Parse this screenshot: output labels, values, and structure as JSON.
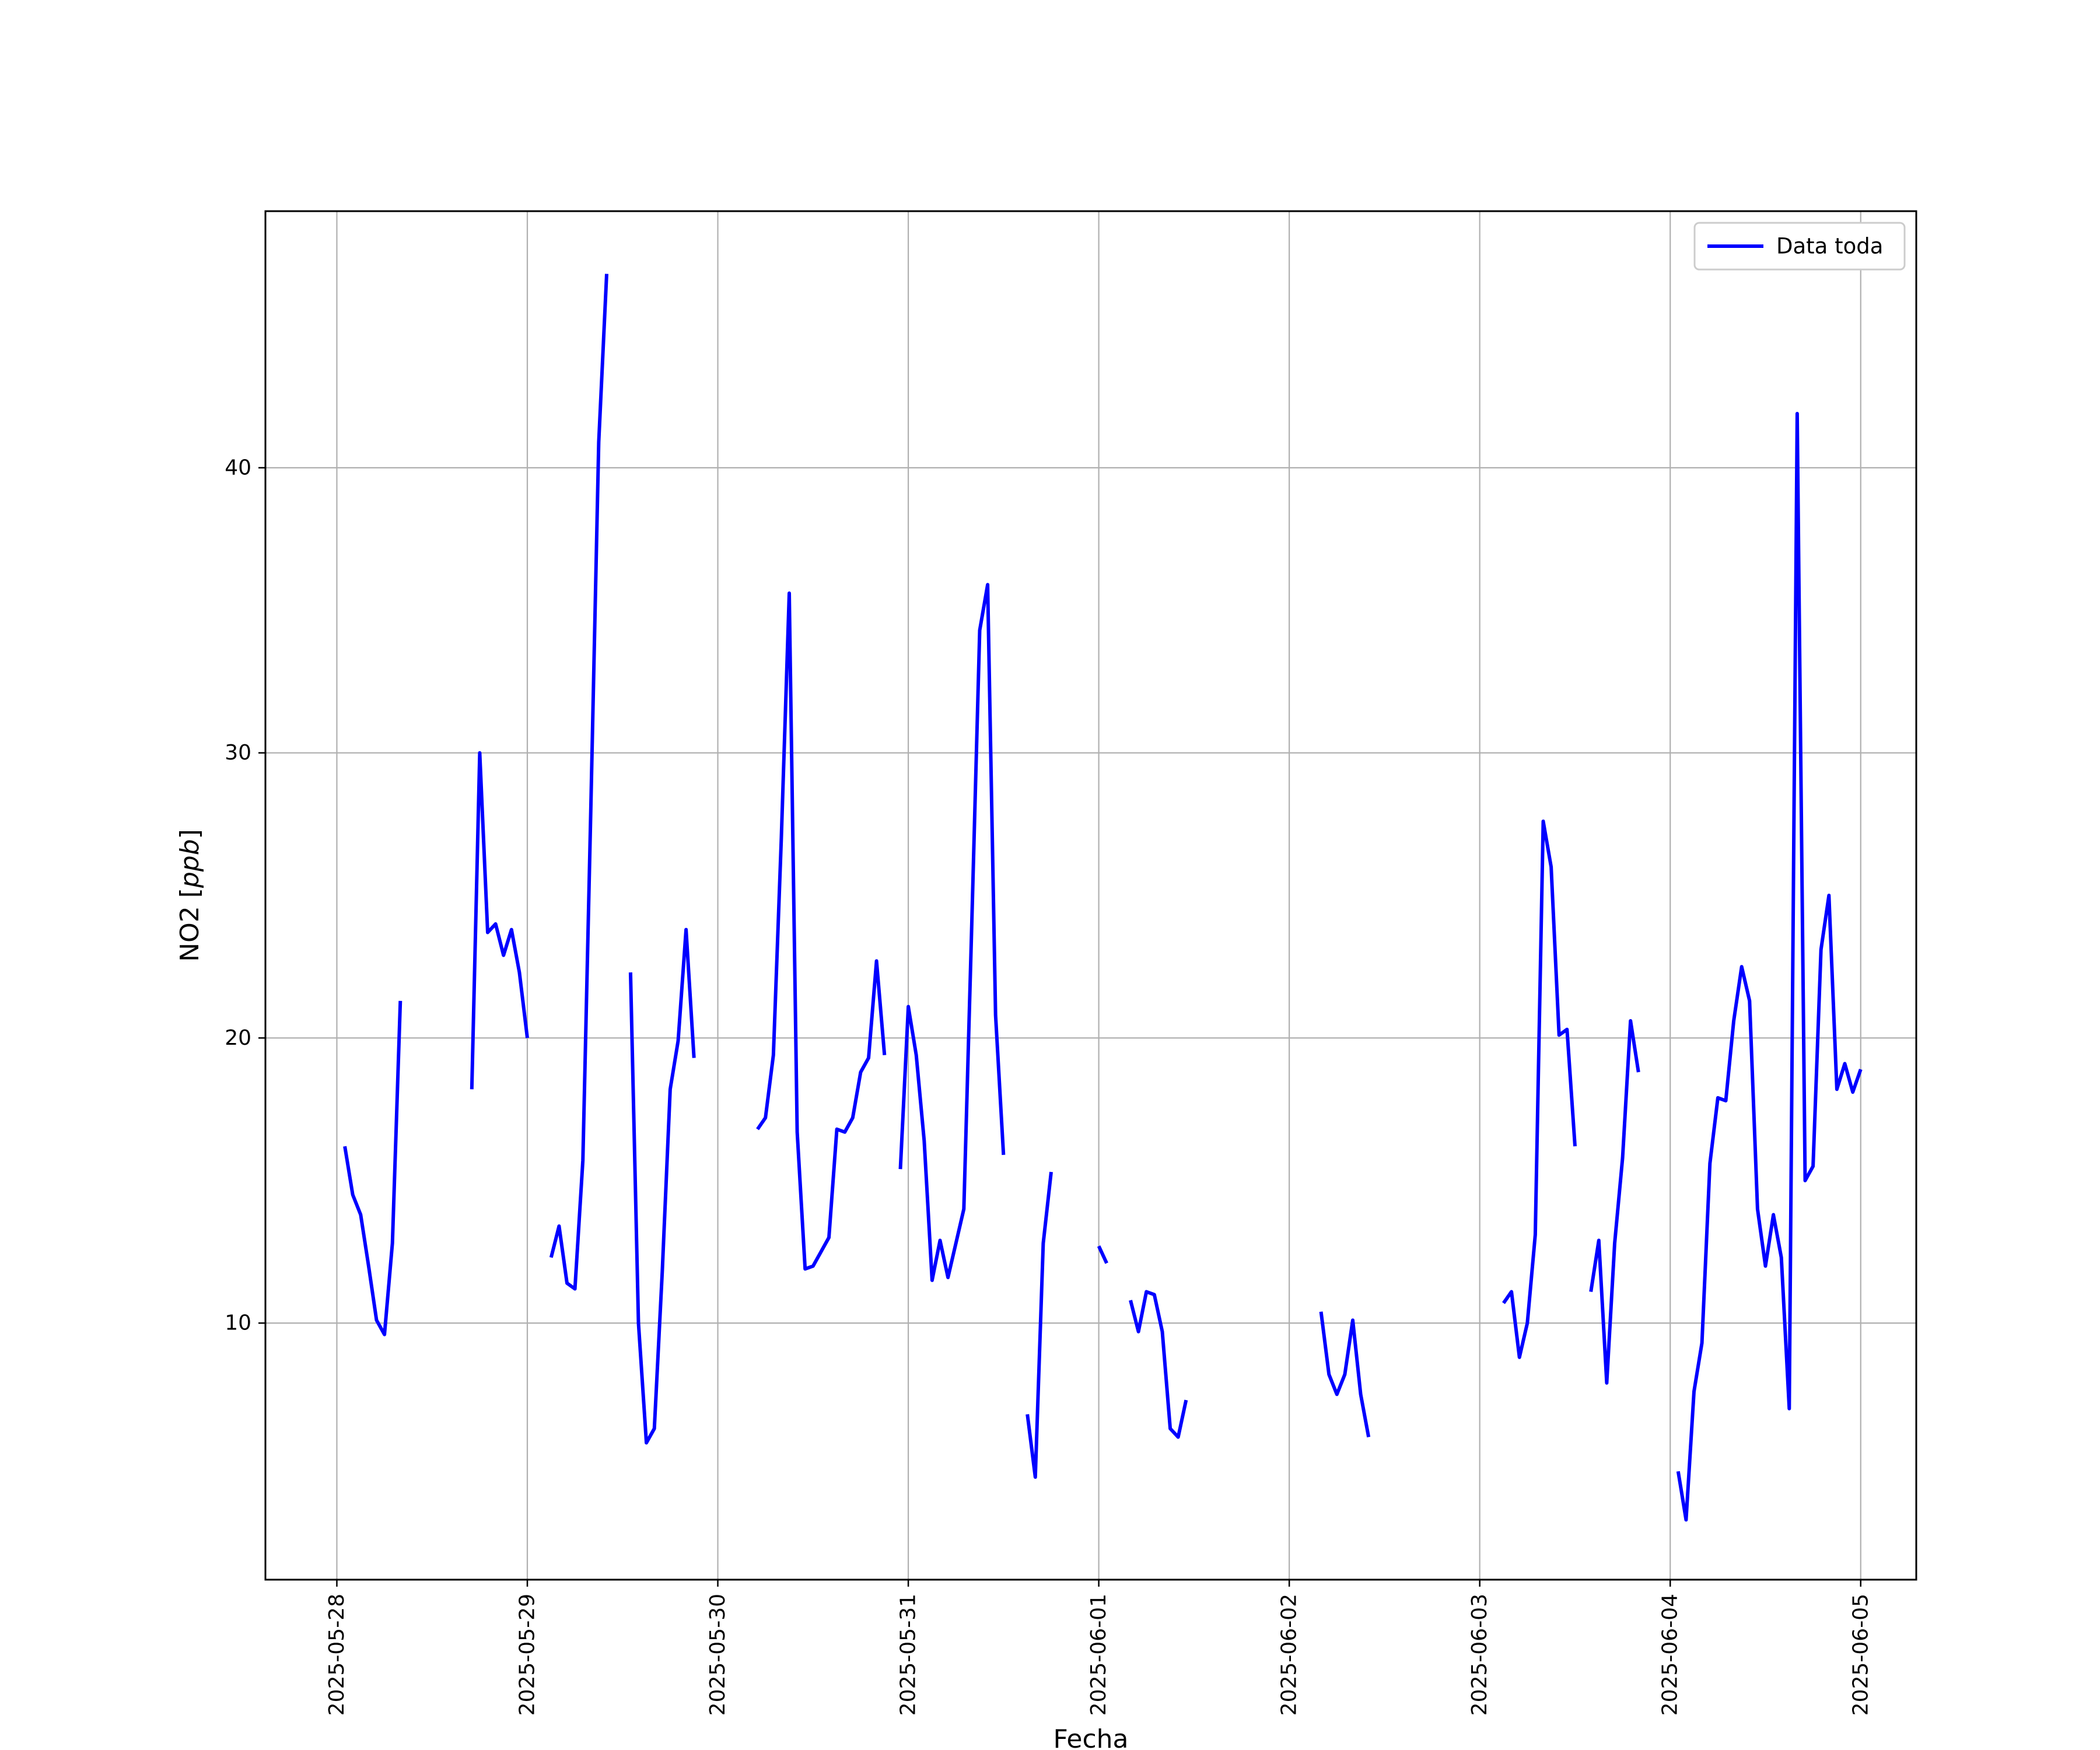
{
  "chart_data": {
    "type": "line",
    "title": "",
    "xlabel": "Fecha",
    "ylabel": "NO2 [ppb]",
    "ylabel_prefix": "NO2 [",
    "ylabel_unit": "ppb",
    "ylabel_suffix": "]",
    "x_type": "datetime",
    "xlim": [
      "2025-05-27 15:00",
      "2025-06-05 07:00"
    ],
    "ylim": [
      1.0,
      49.0
    ],
    "x_ticks": [
      "2025-05-28",
      "2025-05-29",
      "2025-05-30",
      "2025-05-31",
      "2025-06-01",
      "2025-06-02",
      "2025-06-03",
      "2025-06-04",
      "2025-06-05"
    ],
    "y_ticks": [
      10,
      20,
      30,
      40
    ],
    "grid": true,
    "legend_position": "top-right",
    "colors": {
      "series": "#0000ff",
      "grid": "#b0b0b0",
      "axes": "#000000"
    },
    "series": [
      {
        "name": "Data toda",
        "segments": [
          [
            [
              "2025-05-28 01:00",
              16.2
            ],
            [
              "2025-05-28 02:00",
              14.5
            ],
            [
              "2025-05-28 03:00",
              13.8
            ],
            [
              "2025-05-28 04:00",
              12.0
            ],
            [
              "2025-05-28 05:00",
              10.1
            ],
            [
              "2025-05-28 06:00",
              9.6
            ],
            [
              "2025-05-28 07:00",
              12.8
            ],
            [
              "2025-05-28 08:00",
              21.3
            ]
          ],
          [
            [
              "2025-05-28 17:00",
              18.2
            ],
            [
              "2025-05-28 18:00",
              30.0
            ],
            [
              "2025-05-28 19:00",
              23.7
            ],
            [
              "2025-05-28 20:00",
              24.0
            ],
            [
              "2025-05-28 21:00",
              22.9
            ],
            [
              "2025-05-28 22:00",
              23.8
            ],
            [
              "2025-05-28 23:00",
              22.3
            ],
            [
              "2025-05-29 00:00",
              20.0
            ]
          ],
          [
            [
              "2025-05-29 03:00",
              12.3
            ],
            [
              "2025-05-29 04:00",
              13.4
            ],
            [
              "2025-05-29 05:00",
              11.4
            ],
            [
              "2025-05-29 06:00",
              11.2
            ],
            [
              "2025-05-29 07:00",
              15.7
            ],
            [
              "2025-05-29 08:00",
              28.0
            ],
            [
              "2025-05-29 09:00",
              40.9
            ],
            [
              "2025-05-29 10:00",
              46.8
            ]
          ],
          [
            [
              "2025-05-29 13:00",
              22.3
            ],
            [
              "2025-05-29 14:00",
              10.0
            ],
            [
              "2025-05-29 15:00",
              5.8
            ],
            [
              "2025-05-29 16:00",
              6.3
            ],
            [
              "2025-05-29 17:00",
              11.8
            ],
            [
              "2025-05-29 18:00",
              18.2
            ],
            [
              "2025-05-29 19:00",
              19.9
            ],
            [
              "2025-05-29 20:00",
              23.8
            ],
            [
              "2025-05-29 21:00",
              19.3
            ]
          ],
          [
            [
              "2025-05-30 05:00",
              16.8
            ],
            [
              "2025-05-30 06:00",
              17.2
            ],
            [
              "2025-05-30 07:00",
              19.4
            ],
            [
              "2025-05-30 08:00",
              27.0
            ],
            [
              "2025-05-30 09:00",
              35.6
            ],
            [
              "2025-05-30 10:00",
              16.7
            ],
            [
              "2025-05-30 11:00",
              11.9
            ],
            [
              "2025-05-30 12:00",
              12.0
            ],
            [
              "2025-05-30 13:00",
              12.5
            ],
            [
              "2025-05-30 14:00",
              13.0
            ],
            [
              "2025-05-30 15:00",
              16.8
            ],
            [
              "2025-05-30 16:00",
              16.7
            ],
            [
              "2025-05-30 17:00",
              17.2
            ],
            [
              "2025-05-30 18:00",
              18.8
            ],
            [
              "2025-05-30 19:00",
              19.3
            ],
            [
              "2025-05-30 20:00",
              22.7
            ],
            [
              "2025-05-30 21:00",
              19.4
            ]
          ],
          [
            [
              "2025-05-30 23:00",
              15.4
            ],
            [
              "2025-05-31 00:00",
              21.1
            ],
            [
              "2025-05-31 01:00",
              19.4
            ],
            [
              "2025-05-31 02:00",
              16.4
            ],
            [
              "2025-05-31 03:00",
              11.5
            ],
            [
              "2025-05-31 04:00",
              12.9
            ],
            [
              "2025-05-31 05:00",
              11.6
            ],
            [
              "2025-05-31 06:00",
              12.8
            ],
            [
              "2025-05-31 07:00",
              14.0
            ],
            [
              "2025-05-31 08:00",
              24.0
            ],
            [
              "2025-05-31 09:00",
              34.3
            ],
            [
              "2025-05-31 10:00",
              35.9
            ],
            [
              "2025-05-31 11:00",
              20.8
            ],
            [
              "2025-05-31 12:00",
              15.9
            ]
          ],
          [
            [
              "2025-05-31 15:00",
              6.8
            ],
            [
              "2025-05-31 16:00",
              4.6
            ],
            [
              "2025-05-31 17:00",
              12.8
            ],
            [
              "2025-05-31 18:00",
              15.3
            ]
          ],
          [
            [
              "2025-06-01 00:00",
              12.7
            ],
            [
              "2025-06-01 01:00",
              12.1
            ]
          ],
          [
            [
              "2025-06-01 04:00",
              10.8
            ],
            [
              "2025-06-01 05:00",
              9.7
            ],
            [
              "2025-06-01 06:00",
              11.1
            ],
            [
              "2025-06-01 07:00",
              11.0
            ],
            [
              "2025-06-01 08:00",
              9.7
            ],
            [
              "2025-06-01 09:00",
              6.3
            ],
            [
              "2025-06-01 10:00",
              6.0
            ],
            [
              "2025-06-01 11:00",
              7.3
            ]
          ],
          [
            [
              "2025-06-02 04:00",
              10.4
            ],
            [
              "2025-06-02 05:00",
              8.2
            ],
            [
              "2025-06-02 06:00",
              7.5
            ],
            [
              "2025-06-02 07:00",
              8.2
            ],
            [
              "2025-06-02 08:00",
              10.1
            ],
            [
              "2025-06-02 09:00",
              7.5
            ],
            [
              "2025-06-02 10:00",
              6.0
            ]
          ],
          [
            [
              "2025-06-03 03:00",
              10.7
            ],
            [
              "2025-06-03 04:00",
              11.1
            ],
            [
              "2025-06-03 05:00",
              8.8
            ],
            [
              "2025-06-03 06:00",
              10.0
            ],
            [
              "2025-06-03 07:00",
              13.1
            ],
            [
              "2025-06-03 08:00",
              27.6
            ],
            [
              "2025-06-03 09:00",
              26.0
            ],
            [
              "2025-06-03 10:00",
              20.1
            ],
            [
              "2025-06-03 11:00",
              20.3
            ],
            [
              "2025-06-03 12:00",
              16.2
            ]
          ],
          [
            [
              "2025-06-03 14:00",
              11.1
            ],
            [
              "2025-06-03 15:00",
              12.9
            ],
            [
              "2025-06-03 16:00",
              7.9
            ],
            [
              "2025-06-03 17:00",
              12.8
            ],
            [
              "2025-06-03 18:00",
              15.8
            ],
            [
              "2025-06-03 19:00",
              20.6
            ],
            [
              "2025-06-03 20:00",
              18.8
            ]
          ],
          [
            [
              "2025-06-04 01:00",
              4.8
            ],
            [
              "2025-06-04 02:00",
              3.1
            ],
            [
              "2025-06-04 03:00",
              7.6
            ],
            [
              "2025-06-04 04:00",
              9.3
            ],
            [
              "2025-06-04 05:00",
              15.6
            ],
            [
              "2025-06-04 06:00",
              17.9
            ],
            [
              "2025-06-04 07:00",
              17.8
            ],
            [
              "2025-06-04 08:00",
              20.6
            ],
            [
              "2025-06-04 09:00",
              22.5
            ],
            [
              "2025-06-04 10:00",
              21.3
            ],
            [
              "2025-06-04 11:00",
              14.0
            ],
            [
              "2025-06-04 12:00",
              12.0
            ],
            [
              "2025-06-04 13:00",
              13.8
            ],
            [
              "2025-06-04 14:00",
              12.3
            ],
            [
              "2025-06-04 15:00",
              7.0
            ],
            [
              "2025-06-04 16:00",
              41.9
            ],
            [
              "2025-06-04 17:00",
              15.0
            ],
            [
              "2025-06-04 18:00",
              15.5
            ],
            [
              "2025-06-04 19:00",
              23.1
            ],
            [
              "2025-06-04 20:00",
              25.0
            ],
            [
              "2025-06-04 21:00",
              18.2
            ],
            [
              "2025-06-04 22:00",
              19.1
            ],
            [
              "2025-06-04 23:00",
              18.1
            ],
            [
              "2025-06-05 00:00",
              18.9
            ]
          ]
        ]
      }
    ]
  }
}
